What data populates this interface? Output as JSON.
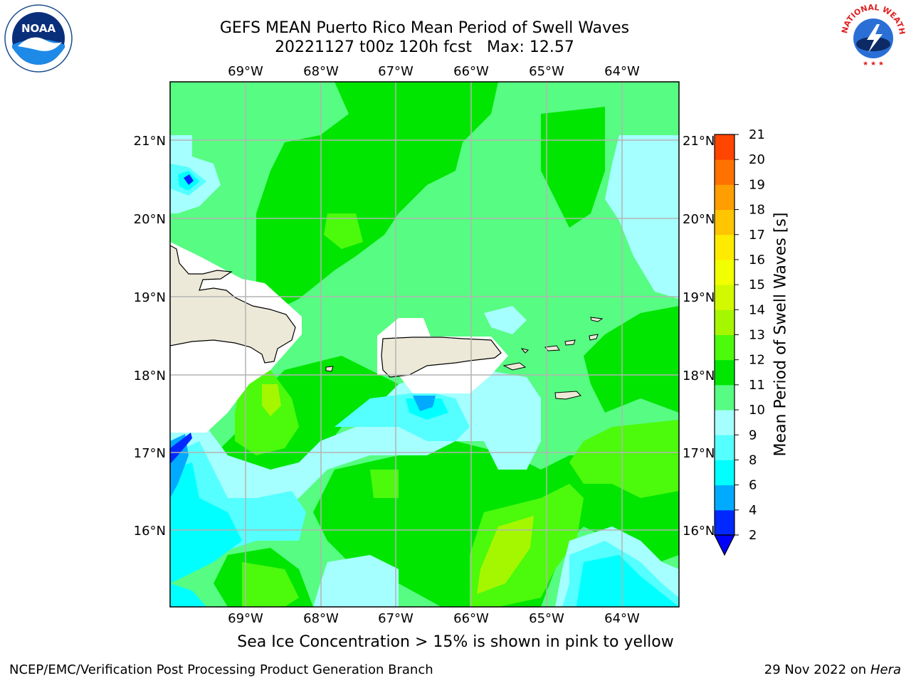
{
  "header": {
    "title_line1": "GEFS MEAN Puerto Rico Mean Period of Swell Waves",
    "title_date_fcst": "20221127 t00z 120h fcst",
    "title_max": "Max: 12.57"
  },
  "logos": {
    "noaa_text": "NOAA",
    "nws_text": "NATIONAL WEATHER SERVICE"
  },
  "map": {
    "lon_labels": [
      "69°W",
      "68°W",
      "67°W",
      "66°W",
      "65°W",
      "64°W"
    ],
    "lat_labels": [
      "21°N",
      "20°N",
      "19°N",
      "18°N",
      "17°N",
      "16°N"
    ],
    "colors": {
      "land": "#ede9d8",
      "background_field": "#57fc82",
      "grid": "#b4b4b4"
    }
  },
  "colorbar": {
    "label": "Mean Period of Swell Waves [s]",
    "ticks": [
      "2",
      "4",
      "6",
      "8",
      "9",
      "10",
      "11",
      "12",
      "13",
      "14",
      "15",
      "16",
      "17",
      "18",
      "19",
      "20",
      "21"
    ],
    "colors": [
      "#0028ff",
      "#00aaff",
      "#00ffff",
      "#55ffff",
      "#a6ffff",
      "#57fc82",
      "#00e600",
      "#4cfa0c",
      "#a5f700",
      "#d2f900",
      "#f1ff00",
      "#ffeb00",
      "#ffc500",
      "#ff9e00",
      "#ff7200",
      "#ff4500",
      "#ff1100"
    ],
    "extend_color": "#0000ff"
  },
  "caption": "Sea Ice Concentration > 15% is shown in pink to yellow",
  "footer": {
    "left": "NCEP/EMC/Verification Post Processing Product Generation Branch",
    "right_date": "29 Nov 2022 on",
    "right_system": "Hera"
  }
}
